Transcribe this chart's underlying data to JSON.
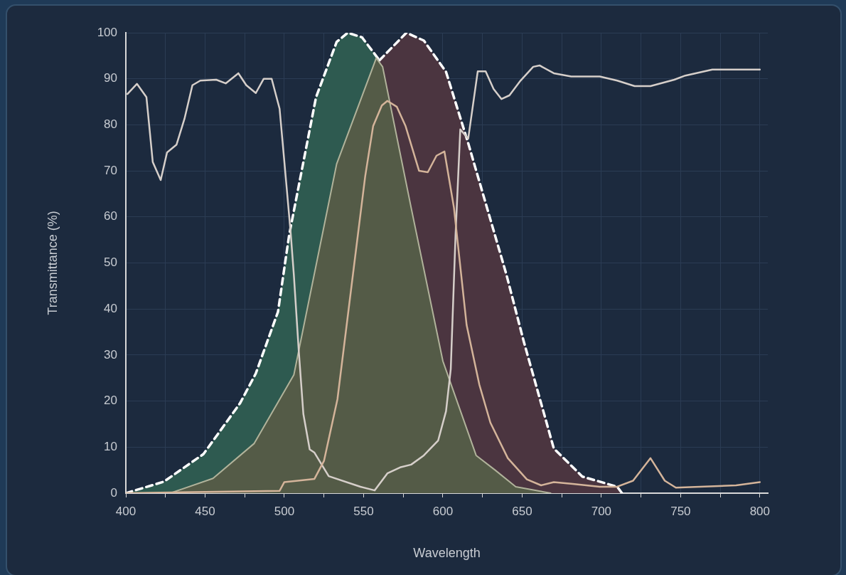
{
  "chart_data": {
    "type": "area",
    "xlabel": "Wavelength",
    "ylabel": "Transmittance (%)",
    "xlim": [
      400,
      805
    ],
    "xticks": [
      400,
      {
        "value": 425,
        "label": null
      },
      450,
      {
        "value": 475,
        "label": null
      },
      500,
      {
        "value": 525,
        "label": null
      },
      550,
      {
        "value": 575,
        "label": null
      },
      600,
      {
        "value": 625,
        "label": null
      },
      650,
      {
        "value": 675,
        "label": null
      },
      700,
      {
        "value": 725,
        "label": null
      },
      750,
      {
        "value": 775,
        "label": null
      },
      800
    ],
    "ylim": [
      0,
      100
    ],
    "yticks": [
      0,
      10,
      20,
      30,
      40,
      50,
      60,
      70,
      80,
      90,
      100
    ],
    "grid": true,
    "marker": "none",
    "series": [
      {
        "type": "area",
        "color": "#2e5a50",
        "line_style": "dashed",
        "x": [
          400,
          424,
          449,
          472,
          482,
          496,
          503,
          520,
          533,
          540,
          549,
          560
        ],
        "values": [
          0,
          2.5,
          8.5,
          19.5,
          26,
          39.4,
          56,
          86,
          98,
          100,
          99,
          94
        ]
      },
      {
        "type": "area",
        "color": "#4b3540",
        "line_style": "dashed",
        "x": [
          560,
          577,
          588,
          602,
          616,
          640,
          651,
          670,
          688,
          710,
          713
        ],
        "values": [
          94,
          100,
          98.3,
          91.5,
          76,
          47.6,
          33,
          9.7,
          3.6,
          1.4,
          0
        ]
      },
      {
        "type": "area",
        "color": "#545b47",
        "x": [
          428,
          455,
          481,
          506,
          533,
          558,
          562,
          580,
          600,
          621,
          633,
          646,
          668
        ],
        "values": [
          0,
          3.2,
          10.8,
          25.7,
          71.5,
          94.5,
          92.6,
          62,
          28.7,
          8.2,
          5,
          1.4,
          0
        ]
      },
      {
        "type": "line",
        "color": "#d6cfca",
        "x": [
          401,
          407,
          413,
          417,
          422,
          426,
          432,
          437,
          442,
          447,
          457,
          463,
          471,
          476,
          482,
          487,
          492,
          497,
          500,
          504,
          506,
          509,
          512,
          516,
          519,
          528,
          548,
          557,
          565,
          573,
          580,
          588,
          597,
          602,
          605,
          608,
          611,
          616,
          622,
          627,
          632,
          637,
          642,
          649,
          657,
          661,
          670,
          681,
          699,
          710,
          721,
          731,
          746,
          753,
          770,
          800
        ],
        "values": [
          86.7,
          88.9,
          86,
          71.9,
          68,
          74,
          75.7,
          81.3,
          88.6,
          89.6,
          89.8,
          89,
          91.2,
          88.6,
          86.9,
          90,
          90,
          83.5,
          72,
          56.5,
          47.4,
          31.4,
          17.2,
          9.5,
          8.8,
          3.7,
          1.4,
          0.6,
          4.3,
          5.6,
          6.2,
          8.2,
          11.4,
          17.8,
          27,
          56,
          79,
          77,
          91.6,
          91.6,
          87.8,
          85.6,
          86.4,
          89.6,
          92.6,
          92.9,
          91.2,
          90.5,
          90.5,
          89.6,
          88.4,
          88.4,
          89.8,
          90.7,
          92,
          92
        ]
      },
      {
        "type": "line",
        "color": "#d4b49a",
        "x": [
          400,
          497,
          500,
          519,
          525,
          533.5,
          544,
          551,
          556,
          561.5,
          565,
          571,
          576.5,
          585,
          590.5,
          596,
          601,
          607,
          615,
          623,
          630,
          641,
          653,
          662,
          670,
          682,
          699,
          710,
          720,
          731,
          740,
          747,
          785,
          800
        ],
        "values": [
          0,
          0.5,
          2.4,
          3.1,
          7,
          20.4,
          49.5,
          68.8,
          79.7,
          84.2,
          85.2,
          83.9,
          79.7,
          70,
          69.7,
          73.3,
          74.2,
          62,
          36.5,
          23.6,
          15.3,
          7.6,
          3,
          1.7,
          2.4,
          2,
          1.4,
          1.4,
          2.7,
          7.6,
          2.7,
          1.2,
          1.7,
          2.4
        ]
      }
    ]
  }
}
